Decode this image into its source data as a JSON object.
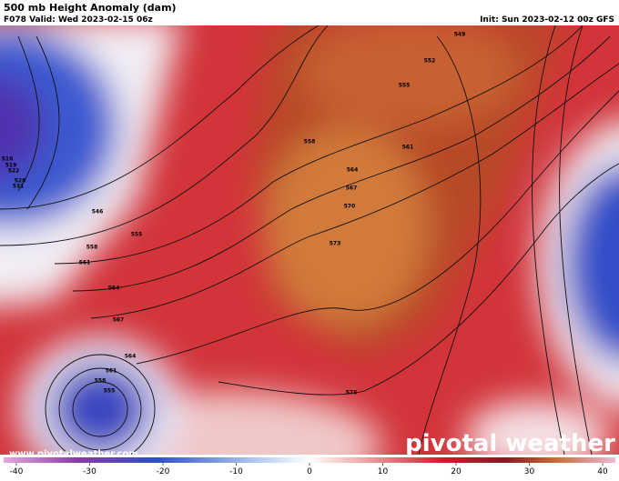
{
  "header": {
    "title": "500 mb Height Anomaly (dam)",
    "valid": "F078 Valid: Wed 2023-02-15 06z",
    "init": "Init: Sun 2023-02-12 00z GFS"
  },
  "map": {
    "contour_labels": [
      549,
      552,
      555,
      558,
      561,
      564,
      567,
      570,
      573,
      576,
      516,
      519,
      522,
      528,
      531,
      546,
      555,
      558,
      561,
      564,
      567,
      564,
      561,
      558,
      555
    ]
  },
  "colorbar": {
    "lim": [
      -40,
      40
    ],
    "ticks": [
      -40,
      -30,
      -20,
      -10,
      0,
      10,
      20,
      30,
      40
    ]
  },
  "footer": {
    "url": "www.pivotalweather.com",
    "brand": "pivotal weather"
  }
}
